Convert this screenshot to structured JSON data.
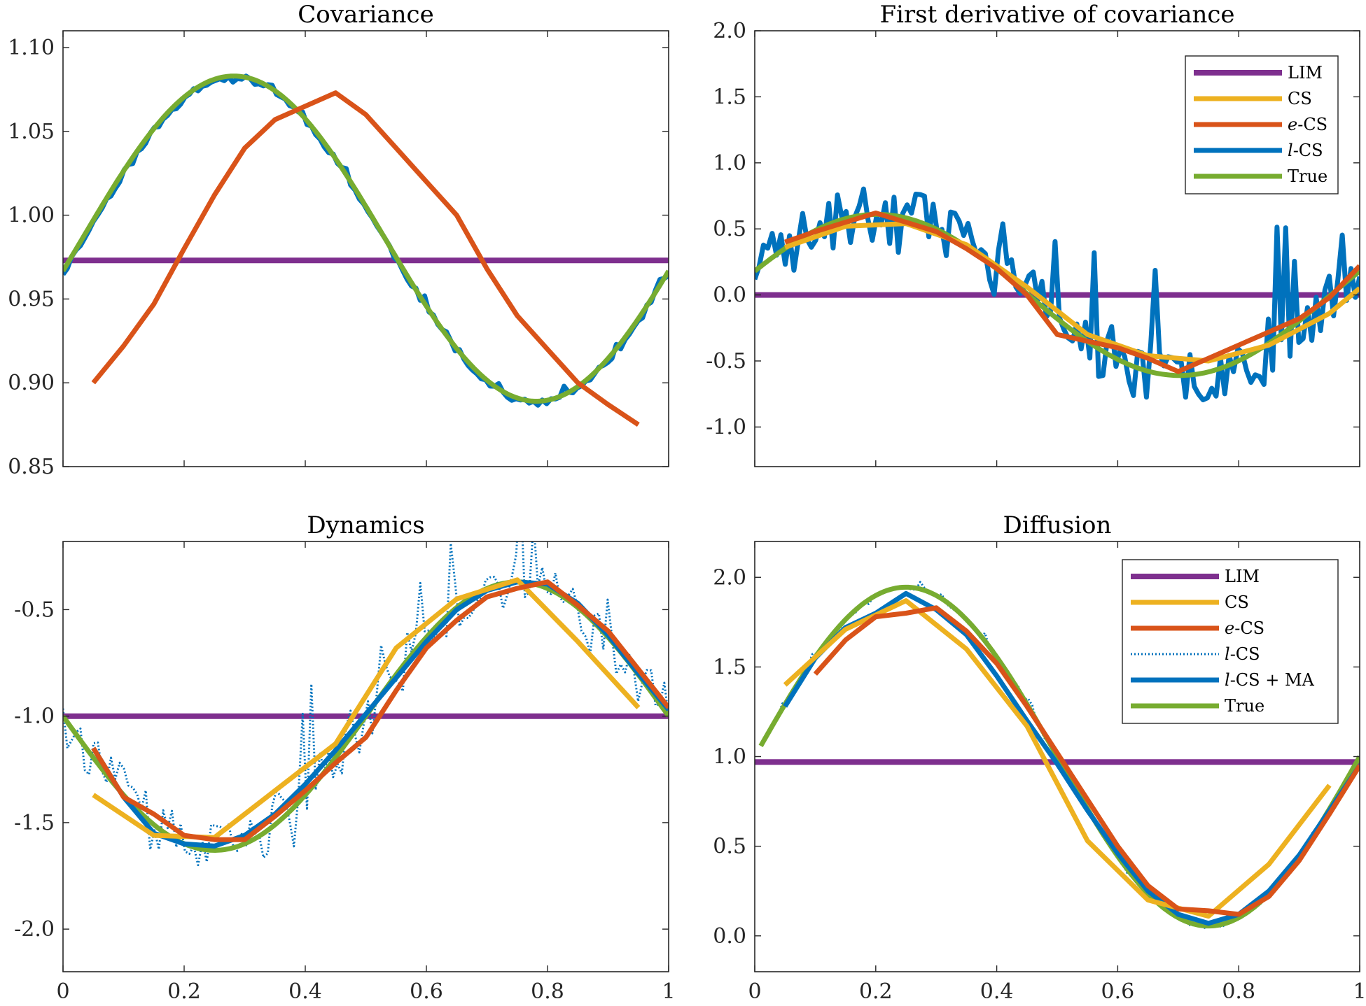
{
  "chart_data": [
    {
      "type": "line",
      "title": "Covariance",
      "xlim": [
        0,
        1
      ],
      "ylim": [
        0.85,
        1.11
      ],
      "xticks": [
        0,
        0.2,
        0.4,
        0.6,
        0.8,
        1
      ],
      "xtick_labels": [
        "",
        "",
        "",
        "",
        "",
        ""
      ],
      "yticks": [
        0.85,
        0.9,
        0.95,
        1.0,
        1.05,
        1.1
      ],
      "ytick_labels": [
        "0.85",
        "0.90",
        "0.95",
        "1.00",
        "1.05",
        "1.10"
      ],
      "legend": null,
      "series": [
        {
          "name": "LIM",
          "kind": "const",
          "value": 0.973,
          "x0": 0,
          "x1": 1
        },
        {
          "name": "l-CS",
          "kind": "noisy",
          "noise": 0.003,
          "seed": 11,
          "x0": 0,
          "x1": 1,
          "n": 140,
          "offset": 0.985,
          "amp": 0.097,
          "freq": 1.0,
          "phase": -0.203
        },
        {
          "name": "True",
          "kind": "sine",
          "x0": 0,
          "x1": 1,
          "n": 200,
          "offset": 0.986,
          "amp": 0.097,
          "freq": 1.0,
          "phase": -0.2
        },
        {
          "name": "e-CS",
          "kind": "points",
          "x": [
            0.05,
            0.1,
            0.15,
            0.2,
            0.25,
            0.3,
            0.35,
            0.4,
            0.45,
            0.5,
            0.55,
            0.6,
            0.65,
            0.7,
            0.75,
            0.8,
            0.85,
            0.9,
            0.95
          ],
          "y": [
            0.9,
            0.922,
            0.947,
            0.98,
            1.012,
            1.04,
            1.057,
            1.065,
            1.073,
            1.06,
            1.04,
            1.02,
            1.0,
            0.968,
            0.94,
            0.92,
            0.9,
            0.887,
            0.875
          ]
        }
      ]
    },
    {
      "type": "line",
      "title": "First derivative of covariance",
      "xlim": [
        0,
        1
      ],
      "ylim": [
        -1.3,
        2.0
      ],
      "xticks": [
        0,
        0.2,
        0.4,
        0.6,
        0.8,
        1
      ],
      "xtick_labels": [
        "",
        "",
        "",
        "",
        "",
        ""
      ],
      "yticks": [
        -1.0,
        -0.5,
        0.0,
        0.5,
        1.0,
        1.5,
        2.0
      ],
      "ytick_labels": [
        "-1.0",
        "-0.5",
        "0.0",
        "0.5",
        "1.0",
        "1.5",
        "2.0"
      ],
      "legend": {
        "position": "top-right",
        "entries": [
          {
            "prefix": "",
            "italic": "",
            "suffix": "LIM",
            "series": "LIM"
          },
          {
            "prefix": "",
            "italic": "",
            "suffix": "CS",
            "series": "CS"
          },
          {
            "prefix": "",
            "italic": "e",
            "suffix": "-CS",
            "series": "e-CS"
          },
          {
            "prefix": "",
            "italic": "l",
            "suffix": "-CS",
            "series": "l-CS"
          },
          {
            "prefix": "",
            "italic": "",
            "suffix": "True",
            "series": "True"
          }
        ]
      },
      "series": [
        {
          "name": "LIM",
          "kind": "const",
          "value": 0.0,
          "x0": 0,
          "x1": 1
        },
        {
          "name": "l-CS",
          "kind": "noisy",
          "noise": 0.38,
          "seed": 23,
          "x0": 0,
          "x1": 1,
          "n": 140,
          "offset": 0.0,
          "amp": 0.61,
          "freq": 1.0,
          "phase": 0.3
        },
        {
          "name": "True",
          "kind": "sine",
          "x0": 0,
          "x1": 1,
          "n": 200,
          "offset": 0.0,
          "amp": 0.61,
          "freq": 1.0,
          "phase": 0.3
        },
        {
          "name": "CS",
          "kind": "points",
          "x": [
            0.05,
            0.15,
            0.25,
            0.35,
            0.45,
            0.55,
            0.65,
            0.75,
            0.85,
            0.95,
            1.0
          ],
          "y": [
            0.36,
            0.52,
            0.54,
            0.38,
            0.06,
            -0.3,
            -0.46,
            -0.5,
            -0.38,
            -0.14,
            0.05
          ]
        },
        {
          "name": "e-CS",
          "kind": "points",
          "x": [
            0.05,
            0.1,
            0.15,
            0.2,
            0.25,
            0.3,
            0.35,
            0.4,
            0.45,
            0.5,
            0.55,
            0.6,
            0.65,
            0.7,
            0.75,
            0.8,
            0.85,
            0.9,
            0.95,
            1.0
          ],
          "y": [
            0.4,
            0.48,
            0.55,
            0.62,
            0.55,
            0.48,
            0.35,
            0.2,
            0.0,
            -0.3,
            -0.35,
            -0.4,
            -0.48,
            -0.58,
            -0.48,
            -0.38,
            -0.28,
            -0.18,
            -0.02,
            0.22
          ]
        }
      ]
    },
    {
      "type": "line",
      "title": "Dynamics",
      "xlim": [
        0,
        1
      ],
      "ylim": [
        -2.2,
        -0.18
      ],
      "xticks": [
        0,
        0.2,
        0.4,
        0.6,
        0.8,
        1
      ],
      "xtick_labels": [
        "0",
        "0.2",
        "0.4",
        "0.6",
        "0.8",
        "1"
      ],
      "yticks": [
        -2.0,
        -1.5,
        -1.0,
        -0.5
      ],
      "ytick_labels": [
        "-2.0",
        "-1.5",
        "-1.0",
        "-0.5"
      ],
      "legend": null,
      "series": [
        {
          "name": "LIM",
          "kind": "const",
          "value": -1.0,
          "x0": 0,
          "x1": 1
        },
        {
          "name": "l-CS",
          "kind": "noisy",
          "style": "dotted",
          "noise": 0.22,
          "seed": 37,
          "x0": 0,
          "x1": 1,
          "n": 140,
          "offset": -1.0,
          "amp": 0.63,
          "freq": 1.0,
          "phase": 3.1416
        },
        {
          "name": "True",
          "kind": "sine",
          "x0": 0,
          "x1": 1,
          "n": 200,
          "offset": -1.0,
          "amp": 0.63,
          "freq": 1.0,
          "phase": 3.1416
        },
        {
          "name": "l-CS + MA",
          "kind": "points",
          "x": [
            0.05,
            0.1,
            0.15,
            0.2,
            0.25,
            0.3,
            0.35,
            0.4,
            0.45,
            0.5,
            0.55,
            0.6,
            0.65,
            0.7,
            0.75,
            0.8,
            0.85,
            0.9,
            0.95,
            1.0
          ],
          "y": [
            -1.15,
            -1.38,
            -1.55,
            -1.6,
            -1.61,
            -1.56,
            -1.46,
            -1.32,
            -1.16,
            -0.99,
            -0.82,
            -0.65,
            -0.5,
            -0.41,
            -0.37,
            -0.38,
            -0.47,
            -0.62,
            -0.8,
            -0.97
          ]
        },
        {
          "name": "CS",
          "kind": "points",
          "x": [
            0.05,
            0.15,
            0.25,
            0.35,
            0.45,
            0.55,
            0.65,
            0.75,
            0.85,
            0.95
          ],
          "y": [
            -1.37,
            -1.56,
            -1.57,
            -1.35,
            -1.13,
            -0.68,
            -0.45,
            -0.36,
            -0.65,
            -0.96
          ]
        },
        {
          "name": "e-CS",
          "kind": "points",
          "x": [
            0.05,
            0.1,
            0.15,
            0.2,
            0.25,
            0.3,
            0.35,
            0.4,
            0.45,
            0.5,
            0.55,
            0.6,
            0.65,
            0.7,
            0.75,
            0.8,
            0.85,
            0.9,
            0.95,
            1.0
          ],
          "y": [
            -1.15,
            -1.38,
            -1.46,
            -1.56,
            -1.58,
            -1.58,
            -1.47,
            -1.35,
            -1.22,
            -1.1,
            -0.88,
            -0.68,
            -0.55,
            -0.44,
            -0.4,
            -0.37,
            -0.48,
            -0.6,
            -0.78,
            -0.96
          ]
        }
      ]
    },
    {
      "type": "line",
      "title": "Diffusion",
      "xlim": [
        0,
        1
      ],
      "ylim": [
        -0.2,
        2.2
      ],
      "xticks": [
        0,
        0.2,
        0.4,
        0.6,
        0.8,
        1
      ],
      "xtick_labels": [
        "0",
        "0.2",
        "0.4",
        "0.6",
        "0.8",
        "1"
      ],
      "yticks": [
        0.0,
        0.5,
        1.0,
        1.5,
        2.0
      ],
      "ytick_labels": [
        "0.0",
        "0.5",
        "1.0",
        "1.5",
        "2.0"
      ],
      "legend": {
        "position": "top-right",
        "entries": [
          {
            "prefix": "",
            "italic": "",
            "suffix": "LIM",
            "series": "LIM"
          },
          {
            "prefix": "",
            "italic": "",
            "suffix": "CS",
            "series": "CS"
          },
          {
            "prefix": "",
            "italic": "e",
            "suffix": "-CS",
            "series": "e-CS"
          },
          {
            "prefix": "",
            "italic": "l",
            "suffix": "-CS",
            "series": "l-CS"
          },
          {
            "prefix": "",
            "italic": "l",
            "suffix": "-CS + MA",
            "series": "l-CS + MA"
          },
          {
            "prefix": "",
            "italic": "",
            "suffix": "True",
            "series": "True"
          }
        ]
      },
      "series": [
        {
          "name": "LIM",
          "kind": "const",
          "value": 0.97,
          "x0": 0,
          "x1": 1
        },
        {
          "name": "l-CS",
          "kind": "noisy",
          "style": "dotted",
          "noise": 0.025,
          "seed": 51,
          "x0": 0.01,
          "x1": 1,
          "n": 140,
          "offset": 1.0,
          "amp": 0.945,
          "freq": 1.0,
          "phase": 0.0,
          "freq2": 2.0
        },
        {
          "name": "True",
          "kind": "sine",
          "x0": 0.01,
          "x1": 1,
          "n": 200,
          "offset": 1.0,
          "amp": 0.945,
          "freq": 1.0,
          "phase": 0.0,
          "freq2": 2.0
        },
        {
          "name": "l-CS + MA",
          "kind": "points",
          "x": [
            0.05,
            0.1,
            0.15,
            0.2,
            0.25,
            0.3,
            0.35,
            0.4,
            0.45,
            0.5,
            0.55,
            0.6,
            0.65,
            0.7,
            0.75,
            0.8,
            0.85,
            0.9,
            0.95,
            1.0
          ],
          "y": [
            1.28,
            1.55,
            1.72,
            1.8,
            1.91,
            1.82,
            1.68,
            1.45,
            1.2,
            0.96,
            0.7,
            0.46,
            0.25,
            0.12,
            0.07,
            0.12,
            0.25,
            0.45,
            0.7,
            0.95
          ]
        },
        {
          "name": "CS",
          "kind": "points",
          "x": [
            0.05,
            0.15,
            0.25,
            0.35,
            0.45,
            0.55,
            0.65,
            0.75,
            0.85,
            0.95
          ],
          "y": [
            1.4,
            1.71,
            1.87,
            1.6,
            1.17,
            0.53,
            0.2,
            0.11,
            0.4,
            0.84
          ]
        },
        {
          "name": "e-CS",
          "kind": "points",
          "x": [
            0.1,
            0.15,
            0.2,
            0.25,
            0.3,
            0.35,
            0.4,
            0.45,
            0.5,
            0.55,
            0.6,
            0.65,
            0.7,
            0.75,
            0.8,
            0.85,
            0.9,
            0.95,
            1.0
          ],
          "y": [
            1.46,
            1.65,
            1.78,
            1.8,
            1.83,
            1.7,
            1.52,
            1.28,
            1.02,
            0.76,
            0.5,
            0.28,
            0.15,
            0.14,
            0.12,
            0.22,
            0.42,
            0.68,
            0.95
          ]
        }
      ]
    }
  ],
  "colors": {
    "LIM": "#7E2F8E",
    "CS": "#EDB120",
    "e-CS": "#D95319",
    "l-CS": "#0072BD",
    "l-CS + MA": "#0072BD",
    "True": "#77AC30",
    "axis": "#262626"
  }
}
